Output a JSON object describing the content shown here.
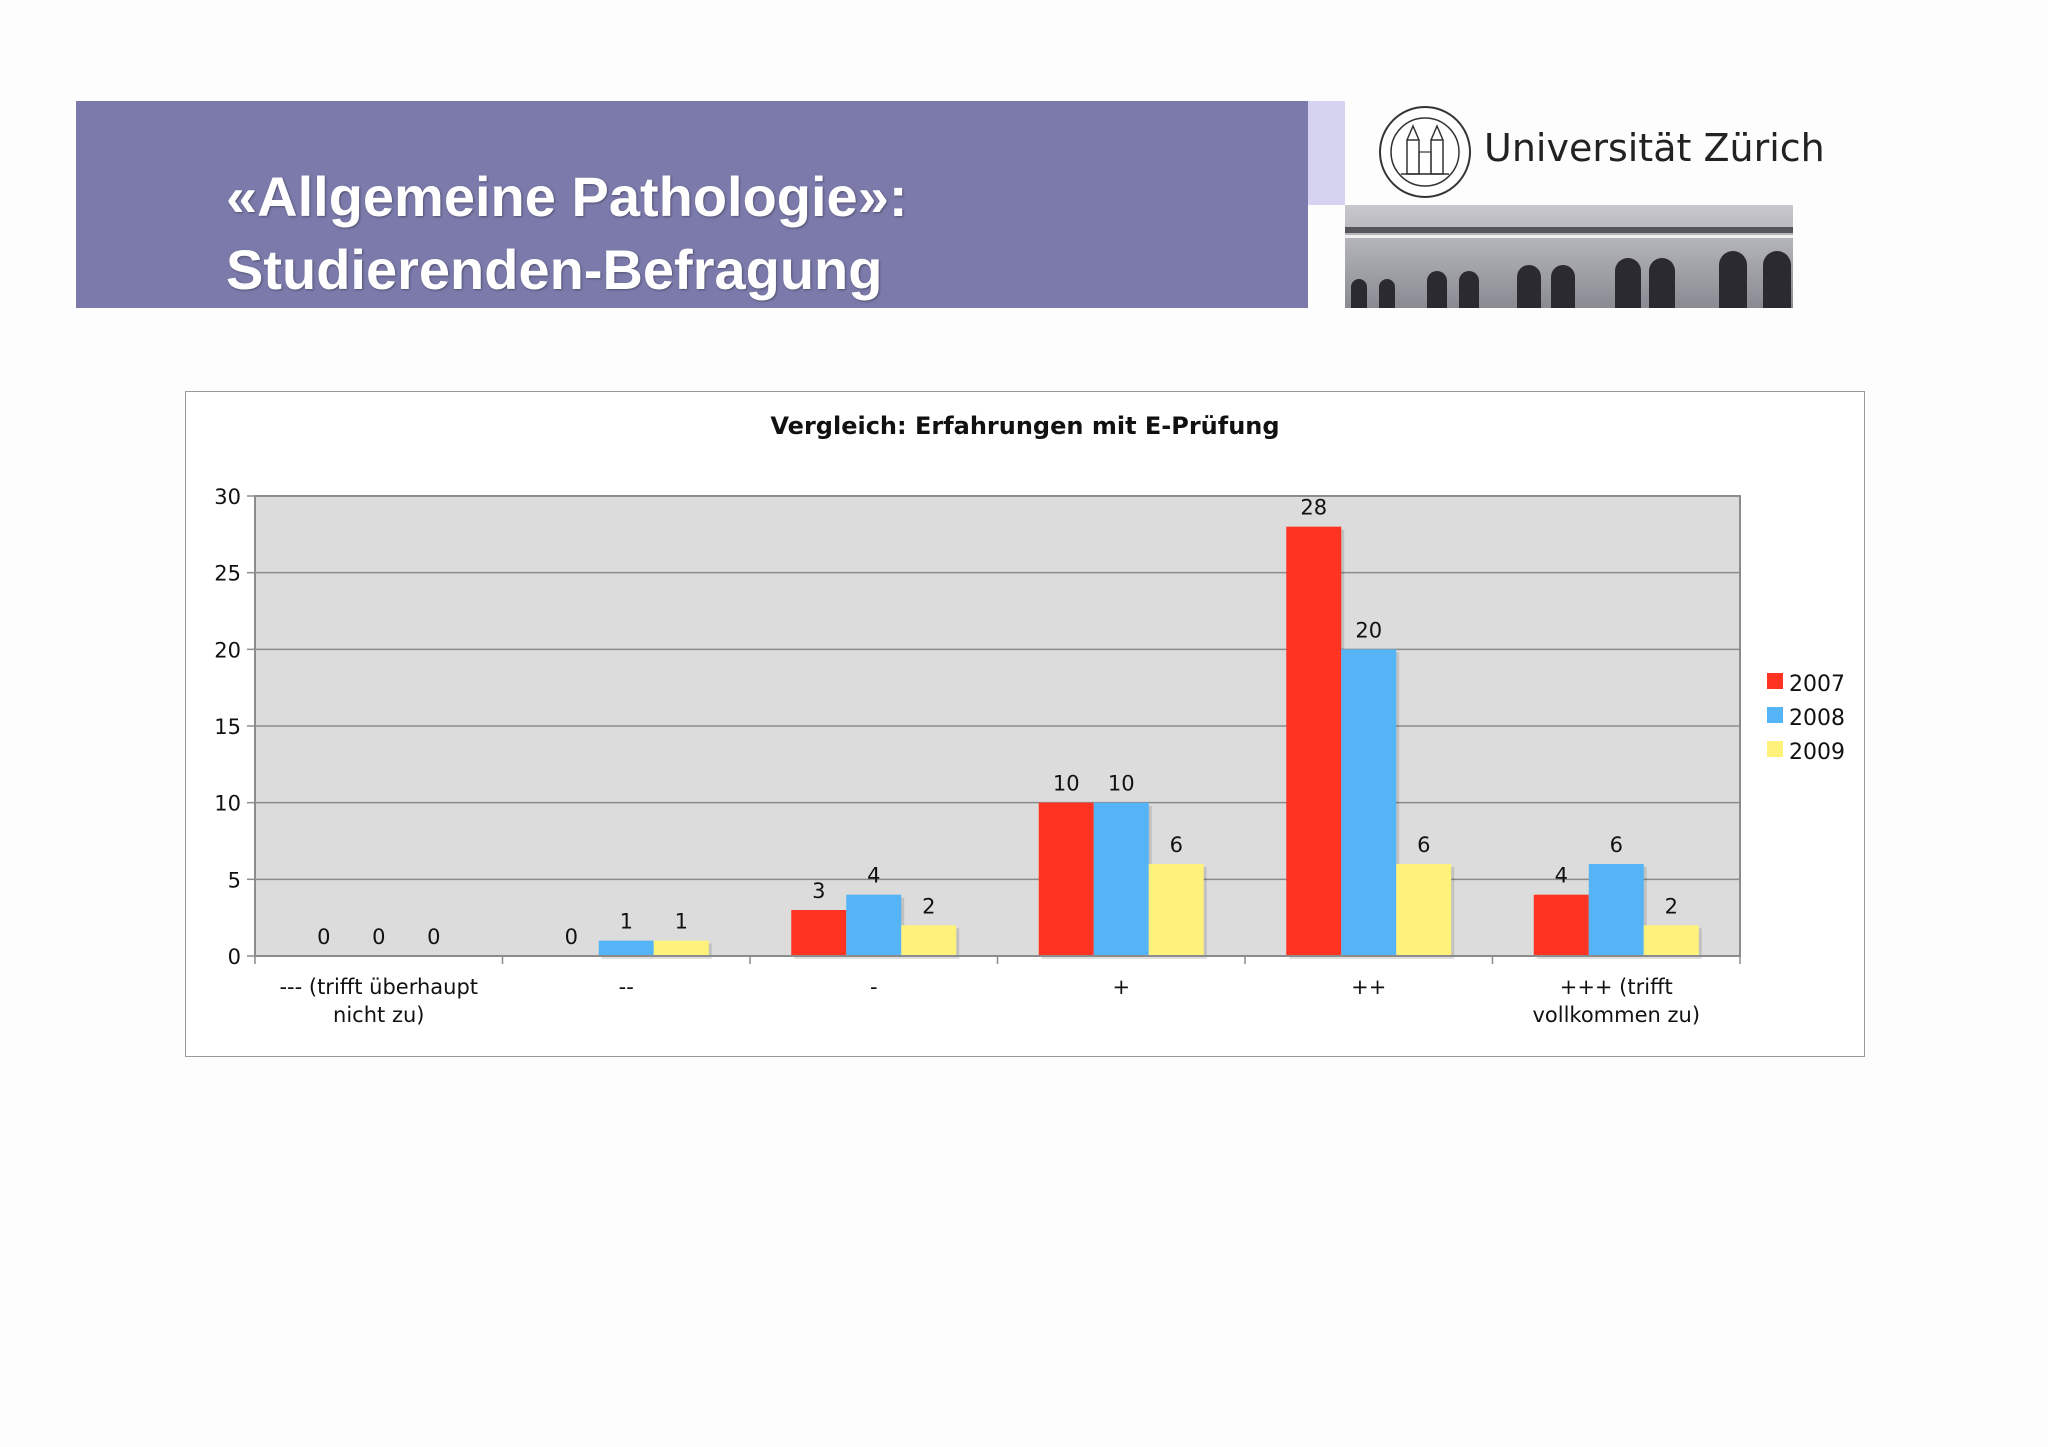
{
  "header": {
    "title_line1": "«Allgemeine Pathologie»:",
    "title_line2": "Studierenden-Befragung",
    "university": "Universität Zürich",
    "band_color": "#7b7aab"
  },
  "chart_data": {
    "type": "bar",
    "title": "Vergleich: Erfahrungen mit E-Prüfung",
    "xlabel": "",
    "ylabel": "",
    "ylim": [
      0,
      30
    ],
    "yticks": [
      0,
      5,
      10,
      15,
      20,
      25,
      30
    ],
    "grid": true,
    "legend_position": "right",
    "categories": [
      [
        "--- (trifft überhaupt",
        "nicht zu)"
      ],
      [
        "--"
      ],
      [
        "-"
      ],
      [
        "+"
      ],
      [
        "++"
      ],
      [
        "+++ (trifft",
        "vollkommen zu)"
      ]
    ],
    "series": [
      {
        "name": "2007",
        "color": "#ff3322",
        "values": [
          0,
          0,
          3,
          10,
          28,
          4
        ]
      },
      {
        "name": "2008",
        "color": "#55b4f5",
        "values": [
          0,
          1,
          4,
          10,
          20,
          6
        ]
      },
      {
        "name": "2009",
        "color": "#fff27a",
        "values": [
          0,
          1,
          2,
          6,
          6,
          2
        ]
      }
    ]
  }
}
